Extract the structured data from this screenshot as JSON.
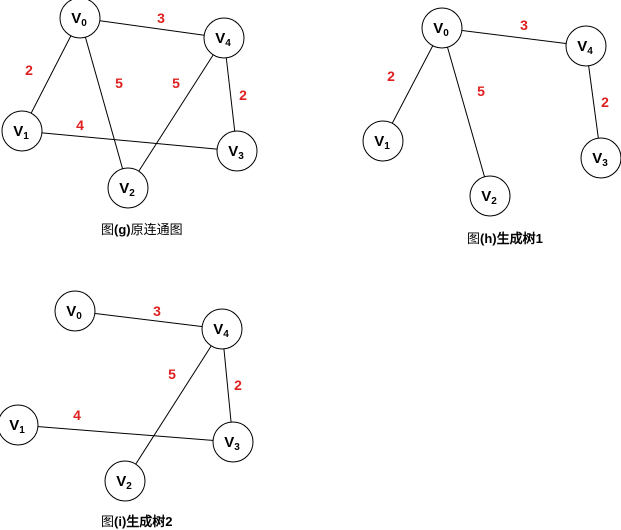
{
  "graphs": [
    {
      "id": "g",
      "caption": {
        "prefix": "图",
        "tag": "(g)",
        "suffix": "原连通图"
      },
      "nodes": [
        {
          "id": "0",
          "letter": "V",
          "sub": "0"
        },
        {
          "id": "4",
          "letter": "V",
          "sub": "4"
        },
        {
          "id": "1",
          "letter": "V",
          "sub": "1"
        },
        {
          "id": "3",
          "letter": "V",
          "sub": "3"
        },
        {
          "id": "2",
          "letter": "V",
          "sub": "2"
        }
      ],
      "edges": [
        {
          "from": "0",
          "to": "4",
          "weight": "3"
        },
        {
          "from": "0",
          "to": "1",
          "weight": "2"
        },
        {
          "from": "0",
          "to": "2",
          "weight": "5"
        },
        {
          "from": "4",
          "to": "2",
          "weight": "5"
        },
        {
          "from": "4",
          "to": "3",
          "weight": "2"
        },
        {
          "from": "1",
          "to": "3",
          "weight": "4"
        }
      ]
    },
    {
      "id": "h",
      "caption": {
        "prefix": "图",
        "tag": "(h)",
        "suffix": "生成树1"
      },
      "nodes": [
        {
          "id": "0",
          "letter": "V",
          "sub": "0"
        },
        {
          "id": "4",
          "letter": "V",
          "sub": "4"
        },
        {
          "id": "1",
          "letter": "V",
          "sub": "1"
        },
        {
          "id": "3",
          "letter": "V",
          "sub": "3"
        },
        {
          "id": "2",
          "letter": "V",
          "sub": "2"
        }
      ],
      "edges": [
        {
          "from": "0",
          "to": "4",
          "weight": "3"
        },
        {
          "from": "0",
          "to": "1",
          "weight": "2"
        },
        {
          "from": "0",
          "to": "2",
          "weight": "5"
        },
        {
          "from": "4",
          "to": "3",
          "weight": "2"
        }
      ]
    },
    {
      "id": "i",
      "caption": {
        "prefix": "图",
        "tag": "(i)",
        "suffix": "生成树2"
      },
      "nodes": [
        {
          "id": "0",
          "letter": "V",
          "sub": "0"
        },
        {
          "id": "4",
          "letter": "V",
          "sub": "4"
        },
        {
          "id": "1",
          "letter": "V",
          "sub": "1"
        },
        {
          "id": "3",
          "letter": "V",
          "sub": "3"
        },
        {
          "id": "2",
          "letter": "V",
          "sub": "2"
        }
      ],
      "edges": [
        {
          "from": "0",
          "to": "4",
          "weight": "3"
        },
        {
          "from": "4",
          "to": "2",
          "weight": "5"
        },
        {
          "from": "4",
          "to": "3",
          "weight": "2"
        },
        {
          "from": "1",
          "to": "3",
          "weight": "4"
        }
      ]
    }
  ],
  "colors": {
    "weight": "#e02020",
    "stroke": "#000000",
    "node_fill": "#ffffff"
  }
}
